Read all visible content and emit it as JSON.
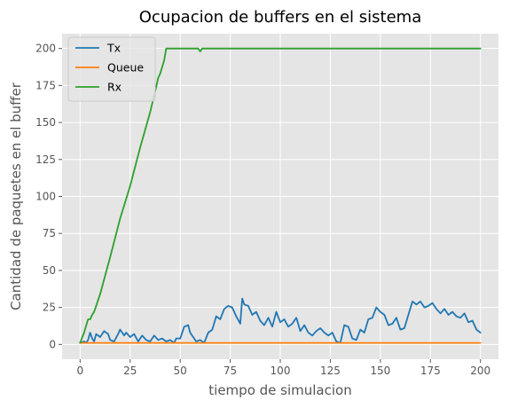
{
  "chart_data": {
    "type": "line",
    "title": "Ocupacion de buffers en el sistema",
    "xlabel": "tiempo de simulacion",
    "ylabel": "Cantidad de paquetes en el buffer",
    "xlim": [
      -9,
      209
    ],
    "ylim": [
      -10,
      210
    ],
    "xticks": [
      0,
      25,
      50,
      75,
      100,
      125,
      150,
      175,
      200
    ],
    "yticks": [
      0,
      25,
      50,
      75,
      100,
      125,
      150,
      175,
      200
    ],
    "grid": true,
    "legend_position": "upper left",
    "style": {
      "background": "#e5e5e5",
      "grid_color": "#ffffff",
      "text_color": "#555555"
    },
    "series": [
      {
        "name": "Tx",
        "color": "#1f77b4",
        "x": [
          0,
          2,
          3,
          4,
          5,
          6,
          7,
          8,
          10,
          12,
          14,
          15,
          17,
          19,
          20,
          22,
          23,
          25,
          27,
          29,
          31,
          33,
          35,
          37,
          39,
          41,
          43,
          45,
          47,
          48,
          50,
          52,
          54,
          55,
          58,
          60,
          62,
          64,
          66,
          68,
          70,
          72,
          74,
          76,
          78,
          80,
          81,
          82,
          84,
          86,
          88,
          90,
          92,
          94,
          96,
          98,
          100,
          102,
          104,
          106,
          108,
          110,
          112,
          114,
          116,
          118,
          120,
          122,
          124,
          126,
          128,
          130,
          132,
          134,
          136,
          138,
          140,
          142,
          144,
          146,
          148,
          150,
          152,
          154,
          156,
          158,
          160,
          162,
          164,
          166,
          168,
          170,
          172,
          174,
          176,
          178,
          180,
          182,
          184,
          186,
          188,
          190,
          192,
          194,
          196,
          198,
          200
        ],
        "y": [
          1,
          2,
          1,
          3,
          8,
          4,
          2,
          7,
          5,
          9,
          7,
          3,
          2,
          7,
          10,
          6,
          8,
          5,
          7,
          2,
          6,
          3,
          2,
          6,
          3,
          4,
          2,
          3,
          1,
          4,
          4,
          12,
          13,
          8,
          2,
          3,
          1,
          8,
          10,
          19,
          17,
          24,
          26,
          25,
          19,
          14,
          31,
          27,
          26,
          20,
          22,
          16,
          13,
          18,
          12,
          22,
          15,
          17,
          12,
          14,
          18,
          9,
          13,
          8,
          6,
          9,
          11,
          8,
          6,
          8,
          2,
          1,
          13,
          12,
          4,
          3,
          10,
          8,
          17,
          18,
          25,
          22,
          20,
          13,
          14,
          18,
          10,
          11,
          20,
          29,
          27,
          29,
          25,
          26,
          28,
          24,
          21,
          24,
          20,
          22,
          19,
          18,
          21,
          15,
          16,
          10,
          8
        ]
      },
      {
        "name": "Queue",
        "color": "#ff7f0e",
        "x": [
          0,
          200
        ],
        "y": [
          1,
          1
        ]
      },
      {
        "name": "Rx",
        "color": "#2ca02c",
        "x": [
          0,
          2,
          4,
          5,
          6,
          7,
          8,
          10,
          15,
          20,
          25,
          30,
          35,
          38,
          39,
          40,
          42,
          43,
          45,
          50,
          55,
          59,
          60,
          61,
          70,
          100,
          150,
          200
        ],
        "y": [
          1,
          8,
          17,
          17,
          20,
          22,
          26,
          34,
          59,
          85,
          107,
          133,
          157,
          174,
          180,
          183,
          192,
          200,
          200,
          200,
          200,
          200,
          198,
          200,
          200,
          200,
          200,
          200
        ]
      }
    ]
  }
}
